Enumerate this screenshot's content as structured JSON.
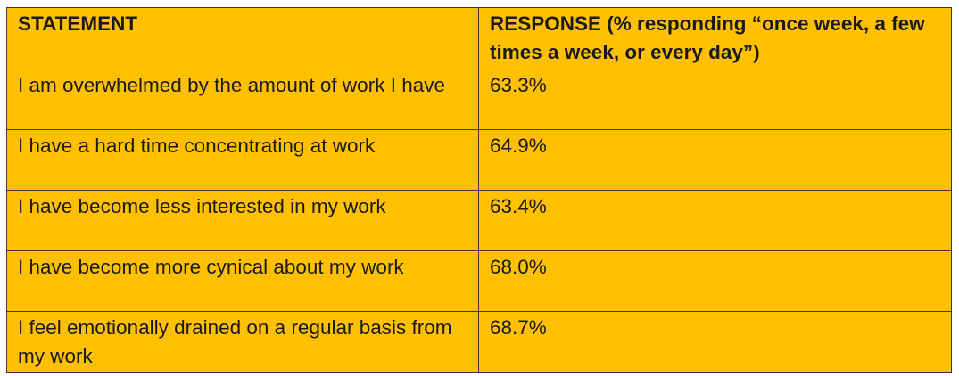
{
  "table": {
    "headers": [
      "STATEMENT",
      "RESPONSE (% responding “once week, a few times a week, or every day”)"
    ],
    "rows": [
      {
        "statement": "I am overwhelmed by the amount of work I have",
        "response": "63.3%"
      },
      {
        "statement": "I have a hard time concentrating at work",
        "response": "64.9%"
      },
      {
        "statement": "I have become less interested in my work",
        "response": "63.4%"
      },
      {
        "statement": "I have become more cynical about my work",
        "response": "68.0%"
      },
      {
        "statement": "I feel emotionally drained on a regular basis from my work",
        "response": "68.7%"
      }
    ]
  },
  "colors": {
    "cell_background": "#FFC000",
    "border": "#3a3a3a",
    "text": "#1a1a1a"
  }
}
